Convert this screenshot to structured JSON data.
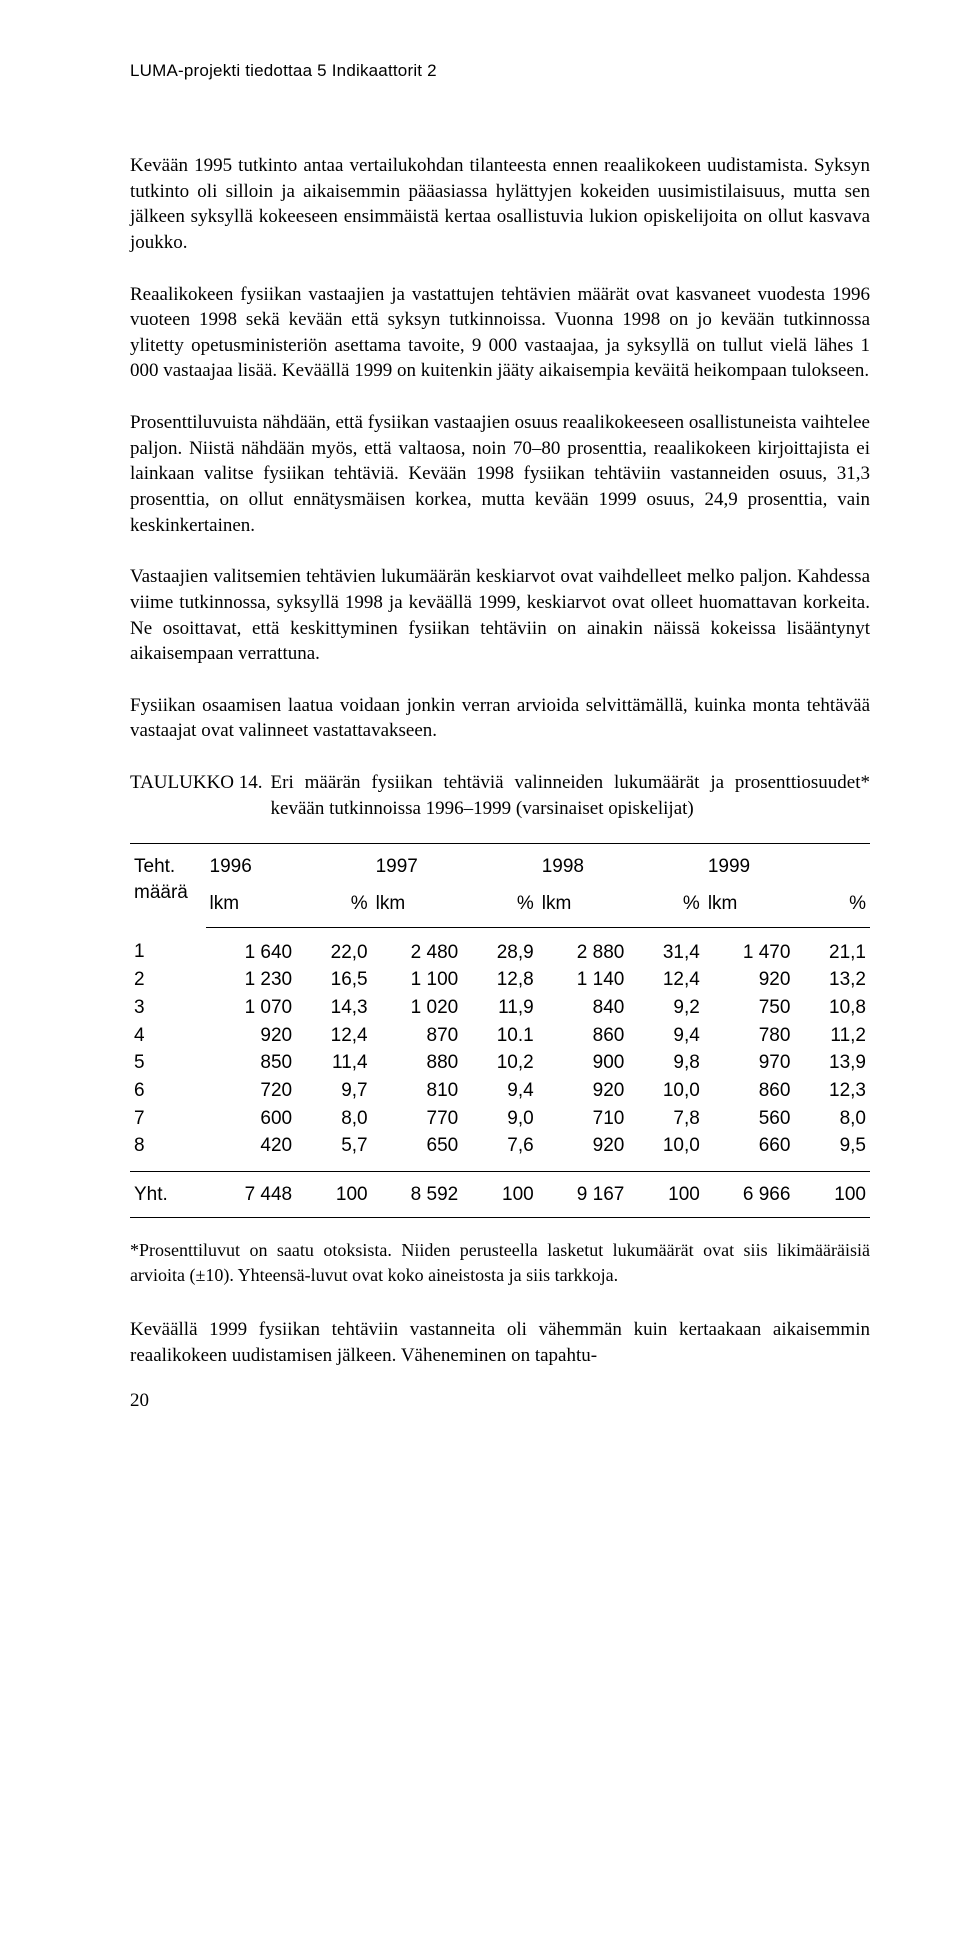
{
  "header": {
    "running_head": "LUMA-projekti tiedottaa 5   Indikaattorit 2"
  },
  "paragraphs": {
    "p1": "Kevään 1995 tutkinto antaa vertailukohdan tilanteesta ennen reaalikokeen uudistamista. Syksyn tutkinto oli silloin ja aikaisemmin pääasiassa hylättyjen kokeiden uusimistilaisuus, mutta sen jälkeen syksyllä kokeeseen ensimmäistä kertaa osallistuvia lukion opiskelijoita on ollut kasvava joukko.",
    "p2": "Reaalikokeen fysiikan vastaajien ja vastattujen tehtävien määrät ovat kasvaneet vuodesta 1996 vuoteen 1998 sekä kevään että syksyn tutkinnoissa. Vuonna 1998 on jo kevään tutkinnossa ylitetty opetusministeriön asettama tavoite, 9 000 vastaajaa, ja syksyllä on tullut vielä lähes 1 000 vastaajaa lisää. Keväällä 1999 on kuitenkin jääty aikaisempia keväitä heikompaan tulokseen.",
    "p3": "Prosenttiluvuista nähdään, että fysiikan vastaajien osuus reaalikokeeseen osallistuneista vaihtelee paljon. Niistä nähdään myös, että valtaosa, noin 70–80 prosenttia, reaalikokeen kirjoittajista ei lainkaan valitse fysiikan tehtäviä. Kevään 1998 fysiikan tehtäviin vastanneiden osuus, 31,3 prosenttia, on ollut ennätysmäisen korkea, mutta kevään 1999 osuus, 24,9 prosenttia, vain keskinkertainen.",
    "p4": "Vastaajien valitsemien tehtävien lukumäärän keskiarvot ovat vaihdelleet melko paljon. Kahdessa viime tutkinnossa, syksyllä 1998 ja keväällä 1999, keskiarvot ovat olleet huomattavan korkeita. Ne osoittavat, että keskittyminen fysiikan tehtäviin on ainakin näissä kokeissa lisääntynyt aikaisempaan verrattuna.",
    "p5": "Fysiikan osaamisen laatua voidaan jonkin verran arvioida selvittämällä, kuinka monta tehtävää vastaajat ovat valinneet vastattavakseen.",
    "p6": "Keväällä 1999 fysiikan tehtäviin vastanneita oli vähemmän kuin kertaakaan aikaisemmin reaalikokeen uudistamisen jälkeen. Väheneminen on tapahtu-"
  },
  "table14": {
    "caption_label": "TAULUKKO 14.",
    "caption_text": "Eri määrän fysiikan tehtäviä valinneiden lukumäärät ja prosenttiosuudet* kevään tutkinnoissa 1996–1999 (varsinaiset opiskelijat)",
    "header": {
      "col_task": "Teht.\nmäärä",
      "years": [
        "1996",
        "1997",
        "1998",
        "1999"
      ],
      "subcols": [
        "lkm",
        "%"
      ]
    },
    "rows": [
      {
        "task": "1",
        "cells": [
          "1 640",
          "22,0",
          "2 480",
          "28,9",
          "2 880",
          "31,4",
          "1 470",
          "21,1"
        ]
      },
      {
        "task": "2",
        "cells": [
          "1 230",
          "16,5",
          "1 100",
          "12,8",
          "1 140",
          "12,4",
          "920",
          "13,2"
        ]
      },
      {
        "task": "3",
        "cells": [
          "1 070",
          "14,3",
          "1 020",
          "11,9",
          "840",
          "9,2",
          "750",
          "10,8"
        ]
      },
      {
        "task": "4",
        "cells": [
          "920",
          "12,4",
          "870",
          "10.1",
          "860",
          "9,4",
          "780",
          "11,2"
        ]
      },
      {
        "task": "5",
        "cells": [
          "850",
          "11,4",
          "880",
          "10,2",
          "900",
          "9,8",
          "970",
          "13,9"
        ]
      },
      {
        "task": "6",
        "cells": [
          "720",
          "9,7",
          "810",
          "9,4",
          "920",
          "10,0",
          "860",
          "12,3"
        ]
      },
      {
        "task": "7",
        "cells": [
          "600",
          "8,0",
          "770",
          "9,0",
          "710",
          "7,8",
          "560",
          "8,0"
        ]
      },
      {
        "task": "8",
        "cells": [
          "420",
          "5,7",
          "650",
          "7,6",
          "920",
          "10,0",
          "660",
          "9,5"
        ]
      }
    ],
    "footer": {
      "label": "Yht.",
      "cells": [
        "7 448",
        "100",
        "8 592",
        "100",
        "9 167",
        "100",
        "6 966",
        "100"
      ]
    }
  },
  "footnote": "*Prosenttiluvut on saatu otoksista. Niiden perusteella lasketut lukumäärät ovat siis likimääräisiä arvioita (±10). Yhteensä-luvut ovat koko aineistosta ja siis tarkkoja.",
  "page_number": "20",
  "style": {
    "text_color": "#000000",
    "background_color": "#ffffff",
    "body_fontsize_pt": 14,
    "header_font": "Arial",
    "body_font": "Palatino"
  }
}
